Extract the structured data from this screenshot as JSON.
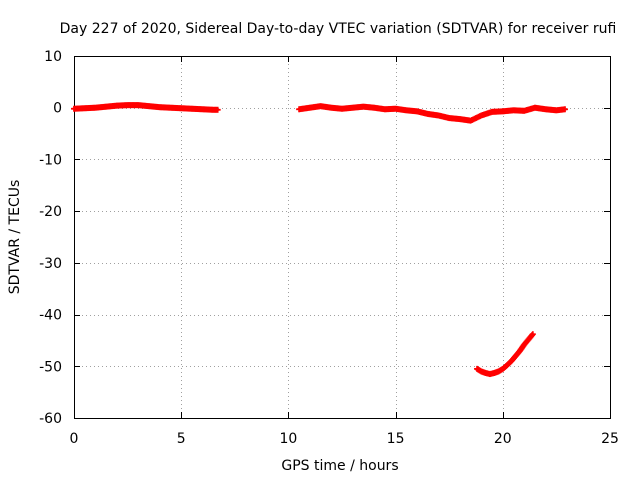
{
  "chart_data": {
    "type": "scatter",
    "title": "Day 227 of 2020, Sidereal Day-to-day VTEC variation (SDTVAR) for receiver rufi",
    "xlabel": "GPS time / hours",
    "ylabel": "SDTVAR / TECUs",
    "xlim": [
      0,
      25
    ],
    "ylim": [
      -60,
      10
    ],
    "xticks": [
      0,
      5,
      10,
      15,
      20,
      25
    ],
    "yticks": [
      10,
      0,
      -10,
      -20,
      -30,
      -40,
      -50,
      -60
    ],
    "grid": true,
    "marker_color": "#ff0000",
    "series": [
      {
        "name": "segment-1",
        "x": [
          0.0,
          0.5,
          1.0,
          1.5,
          2.0,
          2.5,
          3.0,
          3.5,
          4.0,
          4.5,
          5.0,
          5.5,
          6.0,
          6.5,
          6.7
        ],
        "y": [
          -0.2,
          -0.1,
          0.0,
          0.2,
          0.4,
          0.5,
          0.5,
          0.3,
          0.1,
          0.0,
          -0.1,
          -0.2,
          -0.3,
          -0.4,
          -0.4
        ]
      },
      {
        "name": "segment-2",
        "x": [
          10.5,
          11.0,
          11.5,
          12.0,
          12.5,
          13.0,
          13.5,
          14.0,
          14.5,
          15.0,
          15.5,
          16.0,
          16.5,
          17.0,
          17.5,
          18.0,
          18.5,
          19.0,
          19.5,
          20.0,
          20.5,
          21.0,
          21.5,
          22.0,
          22.5,
          22.9
        ],
        "y": [
          -0.3,
          0.0,
          0.3,
          0.0,
          -0.2,
          0.0,
          0.2,
          0.0,
          -0.3,
          -0.2,
          -0.5,
          -0.7,
          -1.2,
          -1.5,
          -2.0,
          -2.2,
          -2.5,
          -1.5,
          -0.8,
          -0.7,
          -0.5,
          -0.6,
          0.0,
          -0.3,
          -0.5,
          -0.3
        ]
      },
      {
        "name": "segment-3",
        "x": [
          18.8,
          19.0,
          19.2,
          19.4,
          19.6,
          19.8,
          20.0,
          20.2,
          20.4,
          20.6,
          20.8,
          21.0,
          21.2,
          21.4
        ],
        "y": [
          -50.5,
          -51.0,
          -51.3,
          -51.5,
          -51.3,
          -51.0,
          -50.5,
          -49.8,
          -49.0,
          -48.0,
          -47.0,
          -45.8,
          -44.8,
          -43.8
        ]
      }
    ]
  }
}
